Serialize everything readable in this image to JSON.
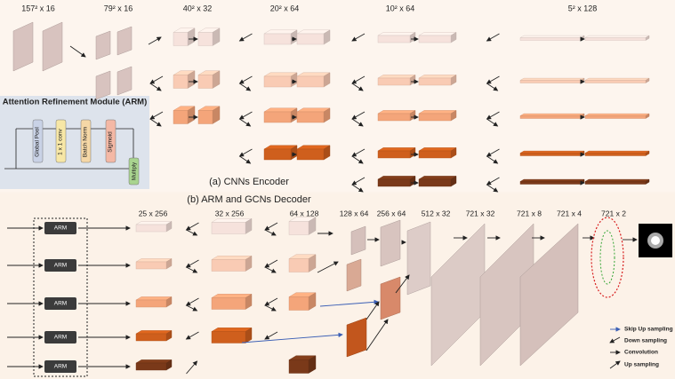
{
  "encoder": {
    "title": "(a) CNNs Encoder",
    "labels": [
      "157² x 16",
      "79² x 16",
      "40² x 32",
      "20² x 64",
      "10² x 64",
      "5² x 128"
    ]
  },
  "arm_module": {
    "title": "Attention Refinement Module (ARM)",
    "steps": [
      "Global Pool",
      "1 x 1 conv",
      "Batch Norm",
      "Sigmoid"
    ],
    "multiply": "Multiply"
  },
  "decoder": {
    "title": "(b) ARM and GCNs Decoder",
    "labels": [
      "25 x 256",
      "32 x 256",
      "64 x 128",
      "128 x 64",
      "256 x 64",
      "512 x 32",
      "721 x 32",
      "721 x 8",
      "721 x 4",
      "721 x 2"
    ],
    "arm_blocks": [
      "ARM",
      "ARM",
      "ARM",
      "ARM",
      "ARM"
    ]
  },
  "legend": [
    "Skip Up sampling",
    "Down sampling",
    "Convolution",
    "Up sampling"
  ]
}
